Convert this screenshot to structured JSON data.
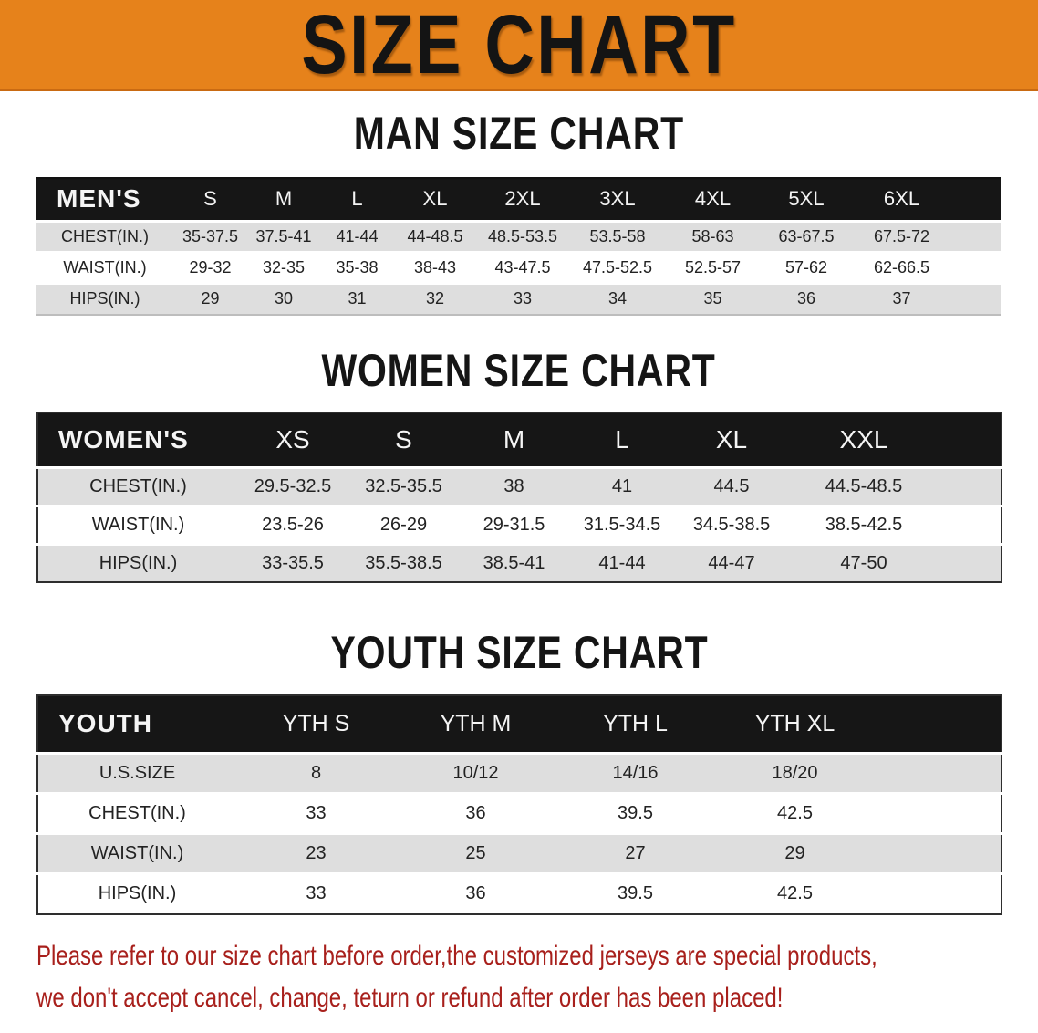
{
  "banner": {
    "title": "SIZE CHART"
  },
  "colors": {
    "banner_bg": "#E6821B",
    "table_header_bg": "#161616",
    "row_stripe": "#DEDEDE",
    "disclaimer_text": "#A8201C"
  },
  "sections": [
    {
      "id": "men",
      "heading": "MAN SIZE CHART",
      "table": {
        "header_label": "MEN'S",
        "columns": [
          "S",
          "M",
          "L",
          "XL",
          "2XL",
          "3XL",
          "4XL",
          "5XL",
          "6XL"
        ],
        "rows": [
          {
            "label": "CHEST(IN.)",
            "values": [
              "35-37.5",
              "37.5-41",
              "41-44",
              "44-48.5",
              "48.5-53.5",
              "53.5-58",
              "58-63",
              "63-67.5",
              "67.5-72"
            ]
          },
          {
            "label": "WAIST(IN.)",
            "values": [
              "29-32",
              "32-35",
              "35-38",
              "38-43",
              "43-47.5",
              "47.5-52.5",
              "52.5-57",
              "57-62",
              "62-66.5"
            ]
          },
          {
            "label": "HIPS(IN.)",
            "values": [
              "29",
              "30",
              "31",
              "32",
              "33",
              "34",
              "35",
              "36",
              "37"
            ]
          }
        ]
      }
    },
    {
      "id": "women",
      "heading": "WOMEN SIZE CHART",
      "table": {
        "header_label": "WOMEN'S",
        "columns": [
          "XS",
          "S",
          "M",
          "L",
          "XL",
          "XXL"
        ],
        "rows": [
          {
            "label": "CHEST(IN.)",
            "values": [
              "29.5-32.5",
              "32.5-35.5",
              "38",
              "41",
              "44.5",
              "44.5-48.5"
            ]
          },
          {
            "label": "WAIST(IN.)",
            "values": [
              "23.5-26",
              "26-29",
              "29-31.5",
              "31.5-34.5",
              "34.5-38.5",
              "38.5-42.5"
            ]
          },
          {
            "label": "HIPS(IN.)",
            "values": [
              "33-35.5",
              "35.5-38.5",
              "38.5-41",
              "41-44",
              "44-47",
              "47-50"
            ]
          }
        ]
      }
    },
    {
      "id": "youth",
      "heading": "YOUTH SIZE CHART",
      "table": {
        "header_label": "YOUTH",
        "columns": [
          "YTH S",
          "YTH M",
          "YTH L",
          "YTH XL"
        ],
        "rows": [
          {
            "label": "U.S.SIZE",
            "values": [
              "8",
              "10/12",
              "14/16",
              "18/20"
            ]
          },
          {
            "label": "CHEST(IN.)",
            "values": [
              "33",
              "36",
              "39.5",
              "42.5"
            ]
          },
          {
            "label": "WAIST(IN.)",
            "values": [
              "23",
              "25",
              "27",
              "29"
            ]
          },
          {
            "label": "HIPS(IN.)",
            "values": [
              "33",
              "36",
              "39.5",
              "42.5"
            ]
          }
        ]
      }
    }
  ],
  "disclaimer": {
    "line1": "Please refer to our size chart before order,the customized jerseys are special products,",
    "line2": "we don't accept cancel, change, teturn or refund after order has been placed!"
  }
}
